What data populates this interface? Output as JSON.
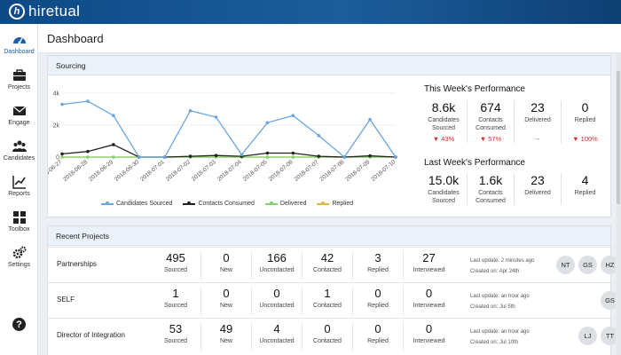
{
  "app": {
    "logo_text": "hiretual",
    "logo_mark": "h"
  },
  "sidebar": {
    "items": [
      {
        "label": "Dashboard",
        "icon": "dashboard-icon"
      },
      {
        "label": "Projects",
        "icon": "briefcase-icon"
      },
      {
        "label": "Engage",
        "icon": "envelope-icon"
      },
      {
        "label": "Candidates",
        "icon": "people-icon"
      },
      {
        "label": "Reports",
        "icon": "line-chart-icon"
      },
      {
        "label": "Toolbox",
        "icon": "grid-icon"
      },
      {
        "label": "Settings",
        "icon": "gears-icon"
      }
    ],
    "help_label": "?"
  },
  "header": {
    "title": "Dashboard"
  },
  "sourcing": {
    "title": "Sourcing",
    "chart_data": {
      "type": "line",
      "x": [
        "2018-06-27",
        "2018-06-28",
        "2018-06-29",
        "2018-06-30",
        "2018-07-01",
        "2018-07-02",
        "2018-07-03",
        "2018-07-04",
        "2018-07-05",
        "2018-07-06",
        "2018-07-07",
        "2018-07-08",
        "2018-07-09",
        "2018-07-10"
      ],
      "yticks": [
        "4k",
        "2k",
        "0"
      ],
      "ylim": [
        0,
        4000
      ],
      "series": [
        {
          "name": "Candidates Sourced",
          "color": "#6aa6dd",
          "values": [
            3300,
            3500,
            2600,
            0,
            0,
            2900,
            2500,
            150,
            2150,
            2600,
            1350,
            0,
            2350,
            0
          ]
        },
        {
          "name": "Contacts Consumed",
          "color": "#222222",
          "values": [
            200,
            350,
            780,
            0,
            0,
            50,
            100,
            50,
            250,
            250,
            50,
            0,
            80,
            0
          ]
        },
        {
          "name": "Delivered",
          "color": "#7fd36e",
          "values": [
            0,
            0,
            0,
            0,
            0,
            0,
            0,
            0,
            0,
            0,
            0,
            0,
            0,
            0
          ]
        },
        {
          "name": "Replied",
          "color": "#e8b04a",
          "values": [
            0,
            0,
            0,
            0,
            0,
            0,
            0,
            0,
            0,
            0,
            0,
            0,
            0,
            0
          ]
        }
      ],
      "grid": true,
      "legend": "bottom"
    }
  },
  "this_week": {
    "title": "This Week's Performance",
    "stats": [
      {
        "value": "8.6k",
        "label": "Candidates Sourced",
        "change": "▼ 43%"
      },
      {
        "value": "674",
        "label": "Contacts Consumed",
        "change": "▼ 57%"
      },
      {
        "value": "23",
        "label": "Delivered",
        "change": "--"
      },
      {
        "value": "0",
        "label": "Replied",
        "change": "▼ 100%"
      }
    ]
  },
  "last_week": {
    "title": "Last Week's Performance",
    "stats": [
      {
        "value": "15.0k",
        "label": "Candidates Sourced"
      },
      {
        "value": "1.6k",
        "label": "Contacts Consumed"
      },
      {
        "value": "23",
        "label": "Delivered"
      },
      {
        "value": "4",
        "label": "Replied"
      }
    ]
  },
  "projects": {
    "title": "Recent Projects",
    "stat_labels": [
      "Sourced",
      "New",
      "Uncontacted",
      "Contacted",
      "Replied",
      "Interviewed"
    ],
    "rows": [
      {
        "name": "Partnerships",
        "stats": [
          "495",
          "0",
          "166",
          "42",
          "3",
          "27"
        ],
        "last_update": "Last update: 2 minutes ago",
        "created": "Created on: Apr 24th",
        "avatars": [
          "NT",
          "GS",
          "HZ"
        ]
      },
      {
        "name": "SELF",
        "stats": [
          "1",
          "0",
          "0",
          "1",
          "0",
          "0"
        ],
        "last_update": "Last update: an hour ago",
        "created": "Created on: Jul 5th",
        "avatars": [
          "GS"
        ]
      },
      {
        "name": "Director of Integration",
        "stats": [
          "53",
          "49",
          "4",
          "0",
          "0",
          "0"
        ],
        "last_update": "Last update: an hour ago",
        "created": "Created on: Jul 10th",
        "avatars": [
          "LJ",
          "TT"
        ]
      }
    ]
  }
}
